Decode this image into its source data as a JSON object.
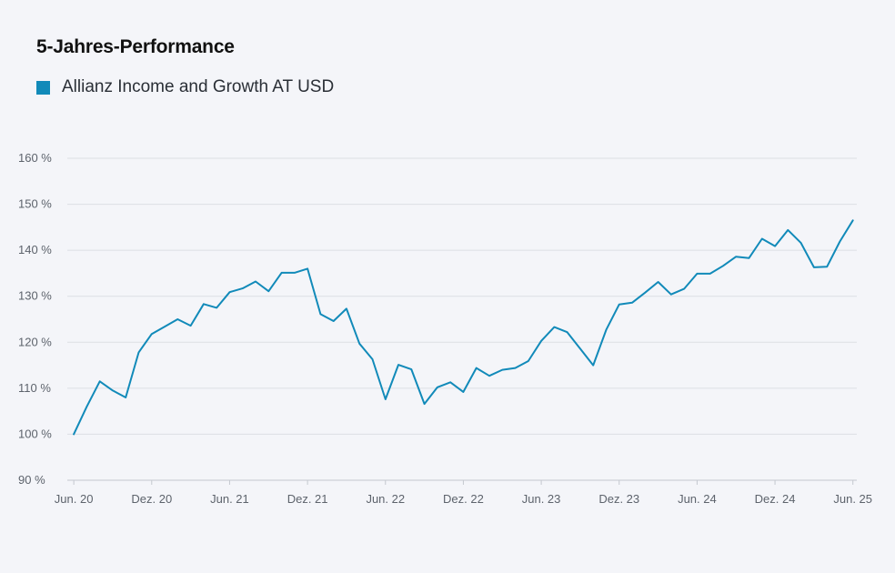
{
  "chart_data": {
    "type": "line",
    "title": "5-Jahres-Performance",
    "xlabel": "",
    "ylabel": "",
    "ylim": [
      90,
      160
    ],
    "y_ticks": [
      90,
      100,
      110,
      120,
      130,
      140,
      150,
      160
    ],
    "y_tick_labels": [
      "90 %",
      "100 %",
      "110 %",
      "120 %",
      "130 %",
      "140 %",
      "150 %",
      "160 %"
    ],
    "x_tick_labels": [
      "Jun. 20",
      "Dez. 20",
      "Jun. 21",
      "Dez. 21",
      "Jun. 22",
      "Dez. 22",
      "Jun. 23",
      "Dez. 23",
      "Jun. 24",
      "Dez. 24",
      "Jun. 25"
    ],
    "x_tick_months": [
      0,
      6,
      12,
      18,
      24,
      30,
      36,
      42,
      48,
      54,
      60
    ],
    "x_range_months": [
      -0.5,
      60.3
    ],
    "grid": true,
    "legend_position": "top-left",
    "series": [
      {
        "name": "Allianz Income and Growth AT USD",
        "color": "#118ab9",
        "x": [
          0,
          1,
          2,
          3,
          4,
          5,
          6,
          7,
          8,
          9,
          10,
          11,
          12,
          13,
          14,
          15,
          16,
          17,
          18,
          19,
          20,
          21,
          22,
          23,
          24,
          25,
          26,
          27,
          28,
          29,
          30,
          31,
          32,
          33,
          34,
          35,
          36,
          37,
          38,
          39,
          40,
          41,
          42,
          43,
          44,
          45,
          46,
          47,
          48,
          49,
          50,
          51,
          52,
          53,
          54,
          55,
          56,
          57,
          58,
          59,
          60
        ],
        "values": [
          100,
          106,
          111.5,
          109.5,
          108,
          117.8,
          121.8,
          123.4,
          125,
          123.6,
          128.3,
          127.5,
          130.9,
          131.7,
          133.2,
          131.1,
          135.1,
          135.1,
          136,
          126.1,
          124.6,
          127.3,
          119.7,
          116.3,
          107.6,
          115.1,
          114.1,
          106.6,
          110.2,
          111.3,
          109.2,
          114.4,
          112.7,
          114,
          114.4,
          115.9,
          120.3,
          123.3,
          122.2,
          118.6,
          115,
          122.7,
          128.2,
          128.6,
          130.8,
          133.1,
          130.4,
          131.6,
          134.9,
          134.9,
          136.6,
          138.6,
          138.3,
          142.5,
          140.9,
          144.4,
          141.6,
          136.3,
          136.4,
          141.9,
          146.5
        ]
      }
    ]
  }
}
